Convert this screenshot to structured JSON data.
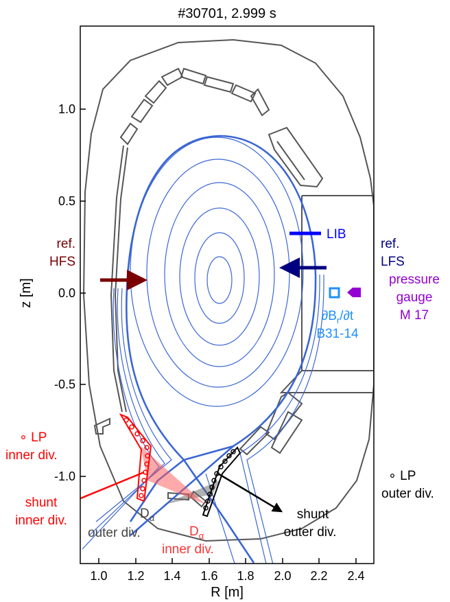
{
  "title": "#30701, 2.999 s",
  "axes": {
    "xlabel": "R [m]",
    "ylabel": "z [m]",
    "xlim": [
      0.9,
      2.5
    ],
    "ylim": [
      -1.33,
      1.45
    ],
    "xticks": [
      "1.0",
      "1.2",
      "1.4",
      "1.6",
      "1.8",
      "2.0",
      "2.2",
      "2.4"
    ],
    "yticks": [
      "1.0",
      "0.5",
      "0.0",
      "-0.5",
      "-1.0"
    ]
  },
  "labels": {
    "ref_hfs": [
      "ref.",
      "HFS"
    ],
    "ref_lfs": [
      "ref.",
      "LFS"
    ],
    "lib": "LIB",
    "pressure_gauge": [
      "pressure",
      "gauge",
      "M 17"
    ],
    "dbdt": [
      "∂B",
      "r",
      "/∂t",
      "B31-14"
    ],
    "lp_inner": [
      "∘ LP",
      "inner div."
    ],
    "lp_outer": [
      "∘ LP",
      "outer div."
    ],
    "shunt_inner": [
      "shunt",
      "inner div."
    ],
    "shunt_outer": [
      "shunt",
      "outer div."
    ],
    "dalpha_outer": [
      "D",
      "α",
      "outer div."
    ],
    "dalpha_inner": [
      "D",
      "α",
      "inner div."
    ]
  },
  "colors": {
    "flux": "#3a66d4",
    "wall": "#555555",
    "ref_hfs": "#7a0000",
    "ref_lfs": "#000080",
    "lib": "#0000ff",
    "pressure": "#9400d3",
    "dbdt": "#1e90ff",
    "lp_inner": "#ff0000",
    "lp_outer": "#000000",
    "dalpha_outer": "#444444",
    "dalpha_inner": "#ff3333"
  }
}
